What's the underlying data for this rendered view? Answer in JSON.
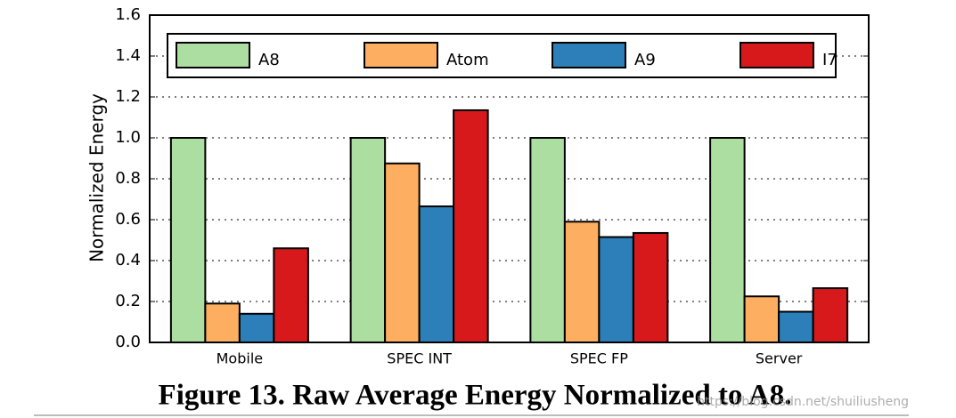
{
  "chart_data": {
    "type": "bar",
    "caption": "Figure 13. Raw Average Energy Normalized to A8.",
    "ylabel": "Normalized Energy",
    "categories": [
      "Mobile",
      "SPEC INT",
      "SPEC FP",
      "Server"
    ],
    "series": [
      {
        "name": "A8",
        "color": "#acdea1",
        "values": [
          1.0,
          1.0,
          1.0,
          1.0
        ]
      },
      {
        "name": "Atom",
        "color": "#fdae61",
        "values": [
          0.19,
          0.875,
          0.59,
          0.225
        ]
      },
      {
        "name": "A9",
        "color": "#2c7fb8",
        "values": [
          0.14,
          0.665,
          0.515,
          0.15
        ]
      },
      {
        "name": "I7",
        "color": "#d7191c",
        "values": [
          0.46,
          1.135,
          0.535,
          0.265
        ]
      }
    ],
    "ylim": [
      0,
      1.6
    ],
    "yticks": [
      {
        "value": 0,
        "label": "0.0"
      },
      {
        "value": 0.2,
        "label": "0.2"
      },
      {
        "value": 0.4,
        "label": "0.4"
      },
      {
        "value": 0.6,
        "label": "0.6"
      },
      {
        "value": 0.8,
        "label": "0.8"
      },
      {
        "value": 1.0,
        "label": "1.0"
      },
      {
        "value": 1.2,
        "label": "1.2"
      },
      {
        "value": 1.4,
        "label": "1.4"
      },
      {
        "value": 1.6,
        "label": "1.6"
      }
    ],
    "grid": true,
    "legend": "top",
    "watermark": "https://blog.csdn.net/shuiliusheng"
  }
}
